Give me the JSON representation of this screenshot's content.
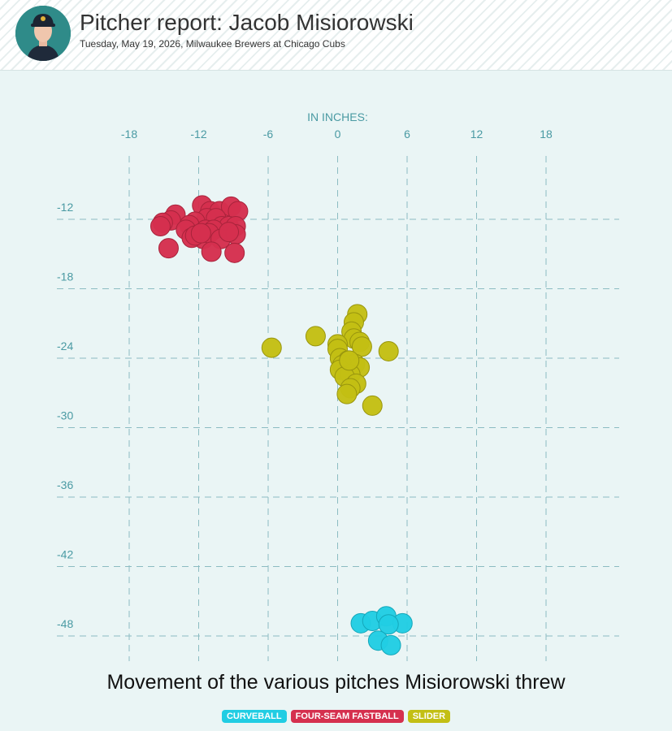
{
  "header": {
    "title": "Pitcher report: Jacob Misiorowski",
    "subtitle": "Tuesday, May 19, 2026, Milwaukee Brewers at Chicago Cubs"
  },
  "caption": "Movement of the various pitches Misiorowski threw",
  "colors": {
    "background": "#eaf5f5",
    "axis_text": "#4a9aa3",
    "grid": "#8cbcc2",
    "curveball": "#21cde3",
    "fastball": "#d5304e",
    "slider": "#c3bf14"
  },
  "legend": [
    {
      "label": "CURVEBALL",
      "color": "#21cde3"
    },
    {
      "label": "FOUR-SEAM FASTBALL",
      "color": "#d5304e"
    },
    {
      "label": "SLIDER",
      "color": "#c3bf14"
    }
  ],
  "chart_data": {
    "type": "scatter",
    "title": "",
    "xlabel": "IN INCHES:",
    "ylabel": "",
    "x_ticks": [
      -18,
      -12,
      -6,
      0,
      6,
      12,
      18
    ],
    "y_ticks": [
      -12,
      -18,
      -24,
      -30,
      -36,
      -42,
      -48
    ],
    "xlim": [
      -18,
      18
    ],
    "ylim": [
      -48,
      -12
    ],
    "grid": true,
    "series": [
      {
        "name": "CURVEBALL",
        "color": "#21cde3",
        "points": [
          [
            2,
            -46.9
          ],
          [
            3,
            -46.7
          ],
          [
            4.2,
            -46.3
          ],
          [
            5.6,
            -46.9
          ],
          [
            4.4,
            -47
          ],
          [
            3.5,
            -48.4
          ],
          [
            4.6,
            -48.8
          ]
        ]
      },
      {
        "name": "FOUR-SEAM FASTBALL",
        "color": "#d5304e",
        "points": [
          [
            -11.7,
            -10.8
          ],
          [
            -11,
            -11.3
          ],
          [
            -10.2,
            -11.3
          ],
          [
            -9.2,
            -10.9
          ],
          [
            -8.6,
            -11.3
          ],
          [
            -14,
            -11.6
          ],
          [
            -11.3,
            -11.9
          ],
          [
            -10.5,
            -11.9
          ],
          [
            -12.3,
            -12.2
          ],
          [
            -14.4,
            -12.1
          ],
          [
            -15.1,
            -12.3
          ],
          [
            -15.3,
            -12.6
          ],
          [
            -12.8,
            -12.5
          ],
          [
            -10,
            -12.6
          ],
          [
            -9.4,
            -12.6
          ],
          [
            -8.8,
            -12.6
          ],
          [
            -13.1,
            -12.9
          ],
          [
            -11.4,
            -12.9
          ],
          [
            -10.7,
            -12.9
          ],
          [
            -11.6,
            -13.7
          ],
          [
            -12.6,
            -13.6
          ],
          [
            -12.3,
            -13.4
          ],
          [
            -11.1,
            -13.2
          ],
          [
            -10.1,
            -13.7
          ],
          [
            -8.8,
            -13.3
          ],
          [
            -9.4,
            -13.1
          ],
          [
            -14.6,
            -14.5
          ],
          [
            -10.9,
            -14.8
          ],
          [
            -8.9,
            -14.9
          ],
          [
            -11.8,
            -13.2
          ]
        ]
      },
      {
        "name": "SLIDER",
        "color": "#c3bf14",
        "points": [
          [
            1.7,
            -20.2
          ],
          [
            1.4,
            -20.9
          ],
          [
            1.2,
            -21.7
          ],
          [
            1.4,
            -22.3
          ],
          [
            1.9,
            -22.6
          ],
          [
            2.1,
            -23
          ],
          [
            -1.9,
            -22.1
          ],
          [
            -5.7,
            -23.1
          ],
          [
            0,
            -22.8
          ],
          [
            0,
            -23.2
          ],
          [
            0.2,
            -24
          ],
          [
            0.9,
            -24.2
          ],
          [
            1.5,
            -24.5
          ],
          [
            0.4,
            -24.6
          ],
          [
            1.9,
            -24.8
          ],
          [
            0.2,
            -25
          ],
          [
            1.1,
            -25.4
          ],
          [
            0.6,
            -25.6
          ],
          [
            1.6,
            -26.2
          ],
          [
            1.1,
            -26.6
          ],
          [
            0.8,
            -27.1
          ],
          [
            4.4,
            -23.4
          ],
          [
            3,
            -28.1
          ],
          [
            1,
            -24.2
          ]
        ]
      }
    ]
  }
}
